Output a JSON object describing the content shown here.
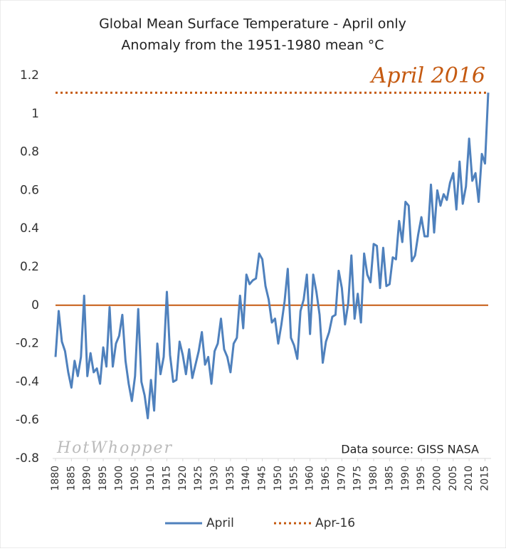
{
  "chart_data": {
    "type": "line",
    "title": "Global Mean Surface Temperature  - April only",
    "subtitle": "Anomaly from the 1951-1980 mean °C",
    "watermark": "HotWhopper",
    "source": "Data source: GISS NASA",
    "annotation": {
      "text": "April 2016",
      "color": "#c55a11"
    },
    "x": [
      1880,
      1881,
      1882,
      1883,
      1884,
      1885,
      1886,
      1887,
      1888,
      1889,
      1890,
      1891,
      1892,
      1893,
      1894,
      1895,
      1896,
      1897,
      1898,
      1899,
      1900,
      1901,
      1902,
      1903,
      1904,
      1905,
      1906,
      1907,
      1908,
      1909,
      1910,
      1911,
      1912,
      1913,
      1914,
      1915,
      1916,
      1917,
      1918,
      1919,
      1920,
      1921,
      1922,
      1923,
      1924,
      1925,
      1926,
      1927,
      1928,
      1929,
      1930,
      1931,
      1932,
      1933,
      1934,
      1935,
      1936,
      1937,
      1938,
      1939,
      1940,
      1941,
      1942,
      1943,
      1944,
      1945,
      1946,
      1947,
      1948,
      1949,
      1950,
      1951,
      1952,
      1953,
      1954,
      1955,
      1956,
      1957,
      1958,
      1959,
      1960,
      1961,
      1962,
      1963,
      1964,
      1965,
      1966,
      1967,
      1968,
      1969,
      1970,
      1971,
      1972,
      1973,
      1974,
      1975,
      1976,
      1977,
      1978,
      1979,
      1980,
      1981,
      1982,
      1983,
      1984,
      1985,
      1986,
      1987,
      1988,
      1989,
      1990,
      1991,
      1992,
      1993,
      1994,
      1995,
      1996,
      1997,
      1998,
      1999,
      2000,
      2001,
      2002,
      2003,
      2004,
      2005,
      2006,
      2007,
      2008,
      2009,
      2010,
      2011,
      2012,
      2013,
      2014,
      2015,
      2016
    ],
    "series": [
      {
        "name": "April",
        "color": "#4f81bd",
        "values": [
          -0.27,
          -0.03,
          -0.19,
          -0.24,
          -0.35,
          -0.43,
          -0.29,
          -0.37,
          -0.27,
          0.05,
          -0.37,
          -0.25,
          -0.35,
          -0.33,
          -0.41,
          -0.22,
          -0.32,
          -0.01,
          -0.32,
          -0.2,
          -0.16,
          -0.05,
          -0.29,
          -0.41,
          -0.5,
          -0.37,
          -0.02,
          -0.4,
          -0.47,
          -0.59,
          -0.39,
          -0.55,
          -0.2,
          -0.36,
          -0.27,
          0.07,
          -0.26,
          -0.4,
          -0.39,
          -0.19,
          -0.26,
          -0.36,
          -0.23,
          -0.38,
          -0.31,
          -0.24,
          -0.14,
          -0.31,
          -0.27,
          -0.41,
          -0.24,
          -0.2,
          -0.07,
          -0.23,
          -0.27,
          -0.35,
          -0.2,
          -0.17,
          0.05,
          -0.12,
          0.16,
          0.11,
          0.13,
          0.14,
          0.27,
          0.24,
          0.1,
          0.03,
          -0.09,
          -0.07,
          -0.2,
          -0.1,
          0.02,
          0.19,
          -0.17,
          -0.21,
          -0.28,
          -0.03,
          0.03,
          0.16,
          -0.15,
          0.16,
          0.07,
          -0.05,
          -0.3,
          -0.19,
          -0.14,
          -0.06,
          -0.05,
          0.18,
          0.09,
          -0.1,
          0.01,
          0.26,
          -0.07,
          0.06,
          -0.09,
          0.27,
          0.16,
          0.12,
          0.32,
          0.31,
          0.09,
          0.3,
          0.1,
          0.11,
          0.25,
          0.24,
          0.44,
          0.33,
          0.54,
          0.52,
          0.23,
          0.26,
          0.37,
          0.46,
          0.36,
          0.36,
          0.63,
          0.38,
          0.6,
          0.52,
          0.58,
          0.55,
          0.64,
          0.69,
          0.5,
          0.75,
          0.53,
          0.62,
          0.87,
          0.65,
          0.69,
          0.54,
          0.79,
          0.74,
          1.11
        ]
      }
    ],
    "reference_lines": [
      {
        "name": "Apr-16",
        "value": 1.11,
        "color": "#c55a11",
        "dashed": true
      }
    ],
    "zero_line_color": "#c55a11",
    "xlim": [
      1880,
      2016
    ],
    "xticks": [
      1880,
      1885,
      1890,
      1895,
      1900,
      1905,
      1910,
      1915,
      1920,
      1925,
      1930,
      1935,
      1940,
      1945,
      1950,
      1955,
      1960,
      1965,
      1970,
      1975,
      1980,
      1985,
      1990,
      1995,
      2000,
      2005,
      2010,
      2015
    ],
    "ylim": [
      -0.8,
      1.2
    ],
    "yticks": [
      1.2,
      1,
      0.8,
      0.6,
      0.4,
      0.2,
      0,
      -0.2,
      -0.4,
      -0.6,
      -0.8
    ],
    "grid": false,
    "legend": "bottom"
  }
}
